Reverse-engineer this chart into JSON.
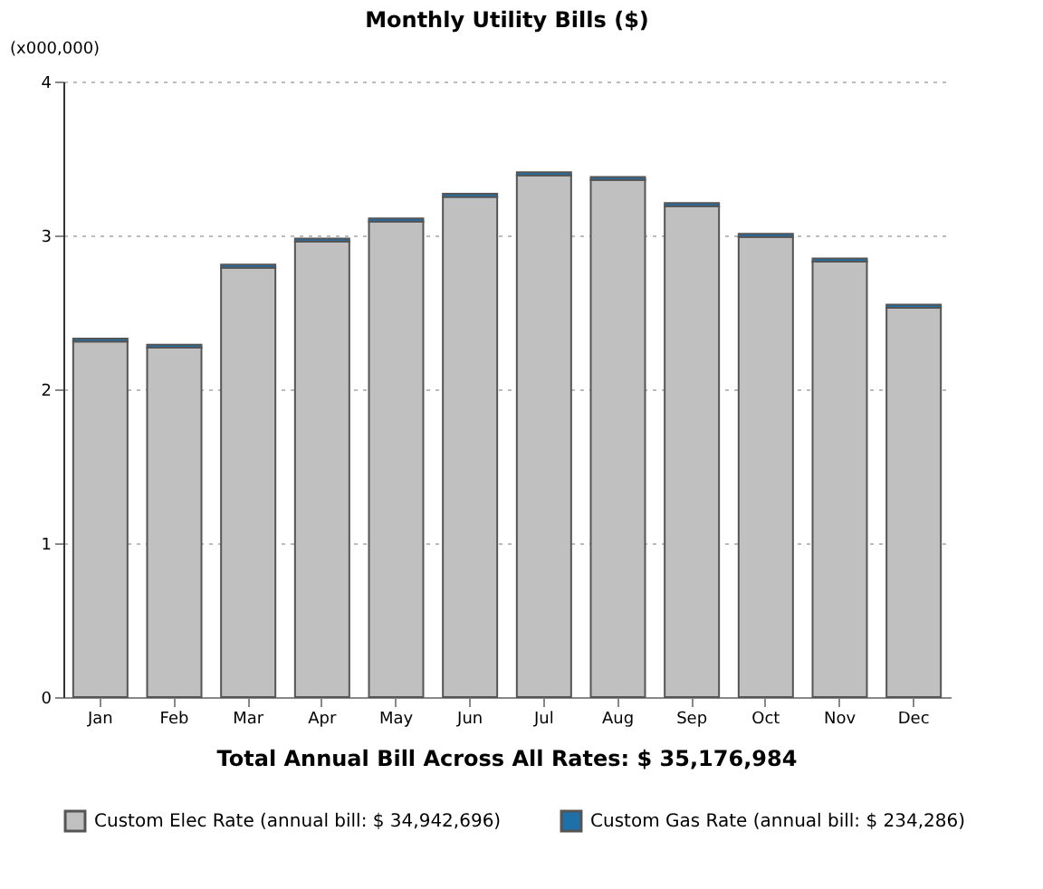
{
  "chart_data": {
    "type": "bar",
    "title": "Monthly Utility Bills ($)",
    "ylabel": "(x000,000)",
    "categories": [
      "Jan",
      "Feb",
      "Mar",
      "Apr",
      "May",
      "Jun",
      "Jul",
      "Aug",
      "Sep",
      "Oct",
      "Nov",
      "Dec"
    ],
    "stacked": true,
    "series": [
      {
        "name": "Custom Elec Rate (annual bill: $ 34,942,696)",
        "color": "#c0c0c0",
        "values": [
          2.31,
          2.27,
          2.79,
          2.96,
          3.09,
          3.25,
          3.39,
          3.36,
          3.19,
          2.99,
          2.83,
          2.53
        ]
      },
      {
        "name": "Custom Gas Rate (annual bill: $ 234,286)",
        "color": "#1f6fa8",
        "values": [
          0.02,
          0.02,
          0.02,
          0.02,
          0.02,
          0.02,
          0.02,
          0.02,
          0.02,
          0.02,
          0.02,
          0.02
        ]
      }
    ],
    "ylim": [
      0,
      4
    ],
    "yticks": [
      0,
      1,
      2,
      3,
      4
    ],
    "grid": "y",
    "legend": "bottom",
    "annotations": [
      "Total Annual Bill Across All Rates:  $ 35,176,984"
    ]
  }
}
